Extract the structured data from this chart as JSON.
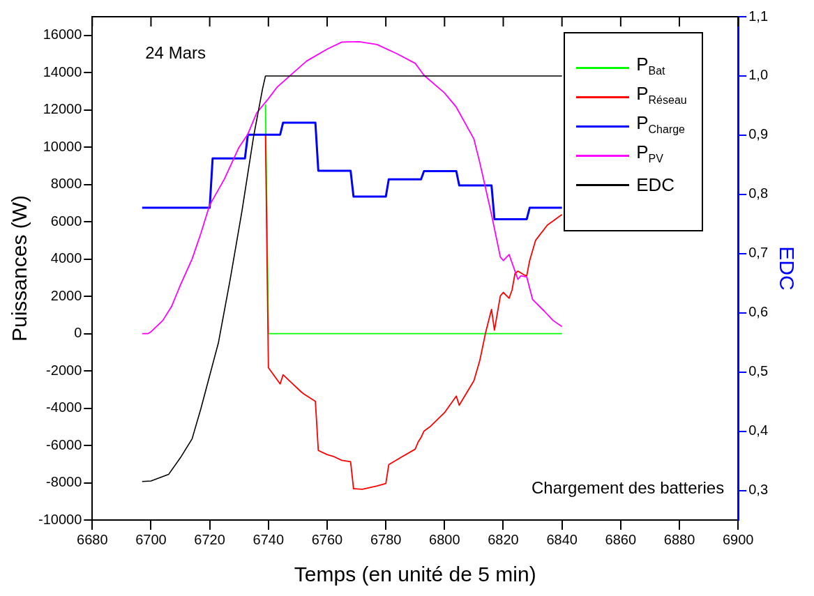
{
  "chart_data": {
    "type": "line",
    "xlabel": "Temps (en unité de 5 min)",
    "ylabel": "Puissances (W)",
    "y2label": "EDC",
    "annotations": [
      "24 Mars",
      "Chargement des batteries"
    ],
    "xlim": [
      6680,
      6900
    ],
    "xticks": [
      6680,
      6700,
      6720,
      6740,
      6760,
      6780,
      6800,
      6820,
      6840,
      6860,
      6880,
      6900
    ],
    "ylim": [
      -10000,
      17000
    ],
    "yticks": [
      -10000,
      -8000,
      -6000,
      -4000,
      -2000,
      0,
      2000,
      4000,
      6000,
      8000,
      10000,
      12000,
      14000,
      16000
    ],
    "y2lim": [
      0.25,
      1.1
    ],
    "y2ticks": [
      {
        "value": 0.3,
        "label": "0,3"
      },
      {
        "value": 0.4,
        "label": "0,4"
      },
      {
        "value": 0.5,
        "label": "0,5"
      },
      {
        "value": 0.6,
        "label": "0,6"
      },
      {
        "value": 0.7,
        "label": "0,7"
      },
      {
        "value": 0.8,
        "label": "0,8"
      },
      {
        "value": 0.9,
        "label": "0,9"
      },
      {
        "value": 1.0,
        "label": "1,0"
      },
      {
        "value": 1.1,
        "label": "1,1"
      }
    ],
    "legend": "top right",
    "marker": "none",
    "line_style": "solid",
    "series": [
      {
        "name": "P$_{Bat}$",
        "color": "#00ff00",
        "x": [
          6739,
          6740,
          6840
        ],
        "values": [
          12300,
          0,
          0
        ]
      },
      {
        "name": "P$_{Réseau}$",
        "color": "#ff0000",
        "x": [
          6739,
          6740,
          6744,
          6745,
          6748,
          6751,
          6752,
          6756,
          6757,
          6760,
          6762,
          6765,
          6768,
          6769,
          6772,
          6777,
          6780,
          6781,
          6785,
          6790,
          6791,
          6792,
          6793,
          6795,
          6800,
          6804,
          6805,
          6810,
          6812,
          6814,
          6816,
          6817,
          6819,
          6820,
          6822,
          6823,
          6824,
          6825,
          6827,
          6828,
          6829,
          6831,
          6835,
          6840
        ],
        "values": [
          10700,
          -1830,
          -2700,
          -2210,
          -2660,
          -3100,
          -3230,
          -3630,
          -6270,
          -6490,
          -6580,
          -6800,
          -6870,
          -8320,
          -8350,
          -8170,
          -8040,
          -7030,
          -6650,
          -6200,
          -5820,
          -5570,
          -5230,
          -5000,
          -4240,
          -3350,
          -3840,
          -2530,
          -1450,
          60,
          1300,
          190,
          2020,
          2210,
          1900,
          2340,
          3230,
          3350,
          3160,
          3100,
          3920,
          5000,
          5820,
          6390
        ]
      },
      {
        "name": "P$_{Charge}$",
        "color": "#0000ff",
        "x": [
          6697,
          6720,
          6721,
          6732,
          6733,
          6744,
          6745,
          6756,
          6757,
          6768,
          6769,
          6780,
          6781,
          6792,
          6793,
          6804,
          6805,
          6816,
          6817,
          6828,
          6829,
          6840
        ],
        "values": [
          6750,
          6750,
          9400,
          9400,
          10670,
          10670,
          11320,
          11320,
          8740,
          8740,
          7350,
          7350,
          8280,
          8280,
          8720,
          8720,
          7950,
          7950,
          6140,
          6140,
          6750,
          6750
        ]
      },
      {
        "name": "P$_{PV}$",
        "color": "#ff00ff",
        "x": [
          6697,
          6699,
          6700,
          6704,
          6707,
          6710,
          6714,
          6717,
          6720,
          6725,
          6730,
          6733,
          6736,
          6740,
          6743,
          6748,
          6753,
          6760,
          6765,
          6771,
          6777,
          6784,
          6790,
          6793,
          6800,
          6804,
          6810,
          6812,
          6816,
          6819,
          6820,
          6822,
          6824,
          6825,
          6826,
          6828,
          6830,
          6834,
          6837,
          6840
        ],
        "values": [
          0,
          0,
          100,
          700,
          1450,
          2600,
          4000,
          5380,
          6900,
          8290,
          10000,
          10700,
          11840,
          12600,
          13230,
          13930,
          14620,
          15260,
          15640,
          15660,
          15510,
          15000,
          14500,
          13860,
          12910,
          12150,
          10440,
          9180,
          6390,
          4110,
          3920,
          4240,
          3350,
          2910,
          3100,
          3040,
          1830,
          1200,
          700,
          380
        ]
      },
      {
        "name": "EDC",
        "color": "#000000",
        "axis": "y2",
        "x": [
          6697,
          6700,
          6706,
          6710,
          6714,
          6717,
          6720,
          6723,
          6727,
          6731,
          6735,
          6738,
          6739,
          6840
        ],
        "values": [
          0.315,
          0.316,
          0.327,
          0.355,
          0.387,
          0.438,
          0.494,
          0.55,
          0.657,
          0.772,
          0.899,
          0.978,
          1.0,
          1.0
        ]
      }
    ]
  }
}
